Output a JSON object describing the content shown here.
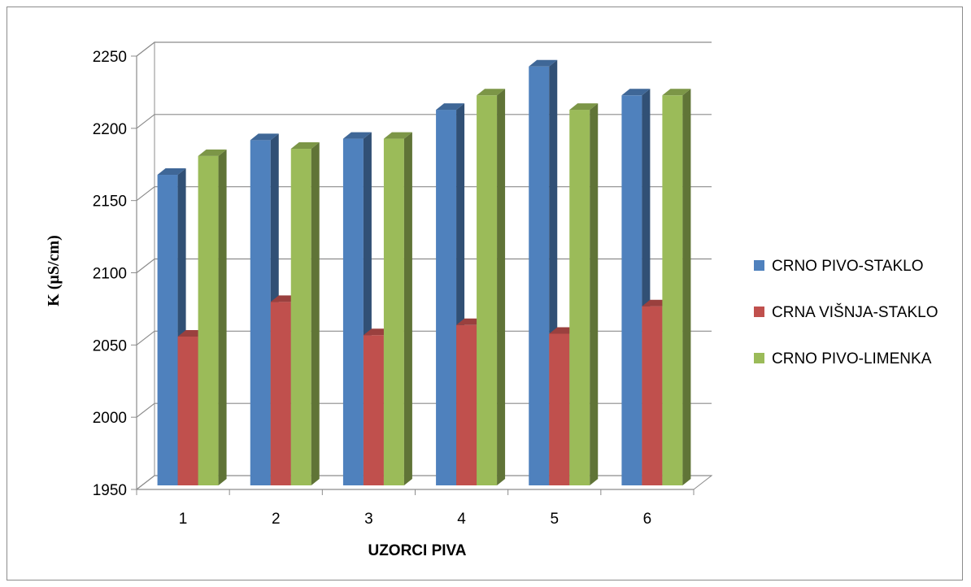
{
  "chart_data": {
    "type": "bar",
    "style": "3d-clustered-column",
    "title": "",
    "xlabel": "UZORCI PIVA",
    "ylabel": "K (µS/cm)",
    "categories": [
      "1",
      "2",
      "3",
      "4",
      "5",
      "6"
    ],
    "ylim": [
      1950,
      2250
    ],
    "yticks": [
      1950,
      2000,
      2050,
      2100,
      2150,
      2200,
      2250
    ],
    "grid": true,
    "legend_position": "right",
    "series": [
      {
        "name": "CRNO PIVO-STAKLO",
        "color": "#4f81bd",
        "values": [
          2165,
          2189,
          2190,
          2210,
          2240,
          2220
        ]
      },
      {
        "name": "CRNA VIŠNJA-STAKLO",
        "color": "#c0504d",
        "values": [
          2053,
          2077,
          2054,
          2061,
          2055,
          2074
        ]
      },
      {
        "name": "CRNO PIVO-LIMENKA",
        "color": "#9bbb59",
        "values": [
          2178,
          2183,
          2190,
          2220,
          2210,
          2220
        ]
      }
    ]
  }
}
